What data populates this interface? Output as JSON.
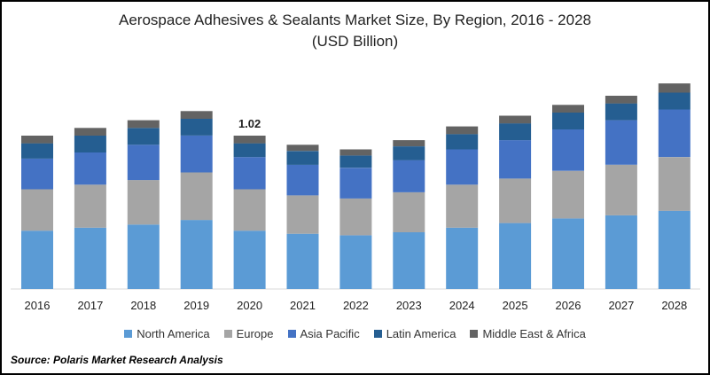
{
  "chart_data": {
    "type": "bar",
    "stacked": true,
    "title": "Aerospace Adhesives & Sealants Market Size, By Region, 2016 - 2028",
    "subtitle": "(USD Billion)",
    "categories": [
      "2016",
      "2017",
      "2018",
      "2019",
      "2020",
      "2021",
      "2022",
      "2023",
      "2024",
      "2025",
      "2026",
      "2027",
      "2028"
    ],
    "series": [
      {
        "name": "North America",
        "color": "#5b9bd5",
        "values": [
          0.38,
          0.4,
          0.42,
          0.45,
          0.38,
          0.36,
          0.35,
          0.37,
          0.4,
          0.43,
          0.46,
          0.48,
          0.51
        ]
      },
      {
        "name": "Europe",
        "color": "#a5a5a5",
        "values": [
          0.27,
          0.28,
          0.29,
          0.31,
          0.27,
          0.25,
          0.24,
          0.26,
          0.28,
          0.29,
          0.31,
          0.33,
          0.35
        ]
      },
      {
        "name": "Asia Pacific",
        "color": "#4472c4",
        "values": [
          0.2,
          0.21,
          0.23,
          0.24,
          0.21,
          0.2,
          0.2,
          0.21,
          0.23,
          0.25,
          0.27,
          0.29,
          0.31
        ]
      },
      {
        "name": "Latin America",
        "color": "#255e91",
        "values": [
          0.1,
          0.11,
          0.11,
          0.11,
          0.09,
          0.09,
          0.08,
          0.09,
          0.1,
          0.11,
          0.11,
          0.11,
          0.11
        ]
      },
      {
        "name": "Middle East & Africa",
        "color": "#636363",
        "values": [
          0.05,
          0.05,
          0.05,
          0.05,
          0.05,
          0.04,
          0.04,
          0.04,
          0.05,
          0.05,
          0.05,
          0.05,
          0.06
        ]
      }
    ],
    "annotations": [
      {
        "category": "2020",
        "text": "1.02"
      }
    ],
    "ylim": [
      0,
      1.41
    ],
    "grid": false,
    "legend": "bottom"
  },
  "source": "Source: Polaris Market Research Analysis"
}
